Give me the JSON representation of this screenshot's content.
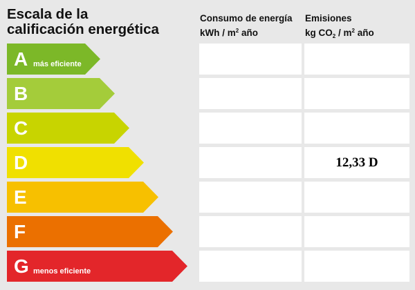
{
  "title": {
    "line1": "Escala de la",
    "line2": "calificación energética"
  },
  "columns": {
    "consumo": {
      "line1": "Consumo de energía",
      "line2_pre": "kWh / m",
      "line2_sup": "2",
      "line2_post": " año"
    },
    "emisiones": {
      "line1": "Emisiones",
      "line2_pre": "kg CO",
      "line2_sub": "2",
      "line2_post": " / m",
      "line2_sup": "2",
      "line2_post2": " año"
    }
  },
  "ratings": [
    {
      "letter": "A",
      "description": "más eficiente",
      "color": "#7cb828"
    },
    {
      "letter": "B",
      "description": "",
      "color": "#a4cc3a"
    },
    {
      "letter": "C",
      "description": "",
      "color": "#c8d400"
    },
    {
      "letter": "D",
      "description": "",
      "color": "#f0e000"
    },
    {
      "letter": "E",
      "description": "",
      "color": "#f7c000"
    },
    {
      "letter": "F",
      "description": "",
      "color": "#eb7000"
    },
    {
      "letter": "G",
      "description": "menos eficiente",
      "color": "#e3262a"
    }
  ],
  "values": {
    "consumo": {
      "rating_letter": "",
      "text": ""
    },
    "emisiones": {
      "rating_letter": "D",
      "text": "12,33 D"
    }
  }
}
